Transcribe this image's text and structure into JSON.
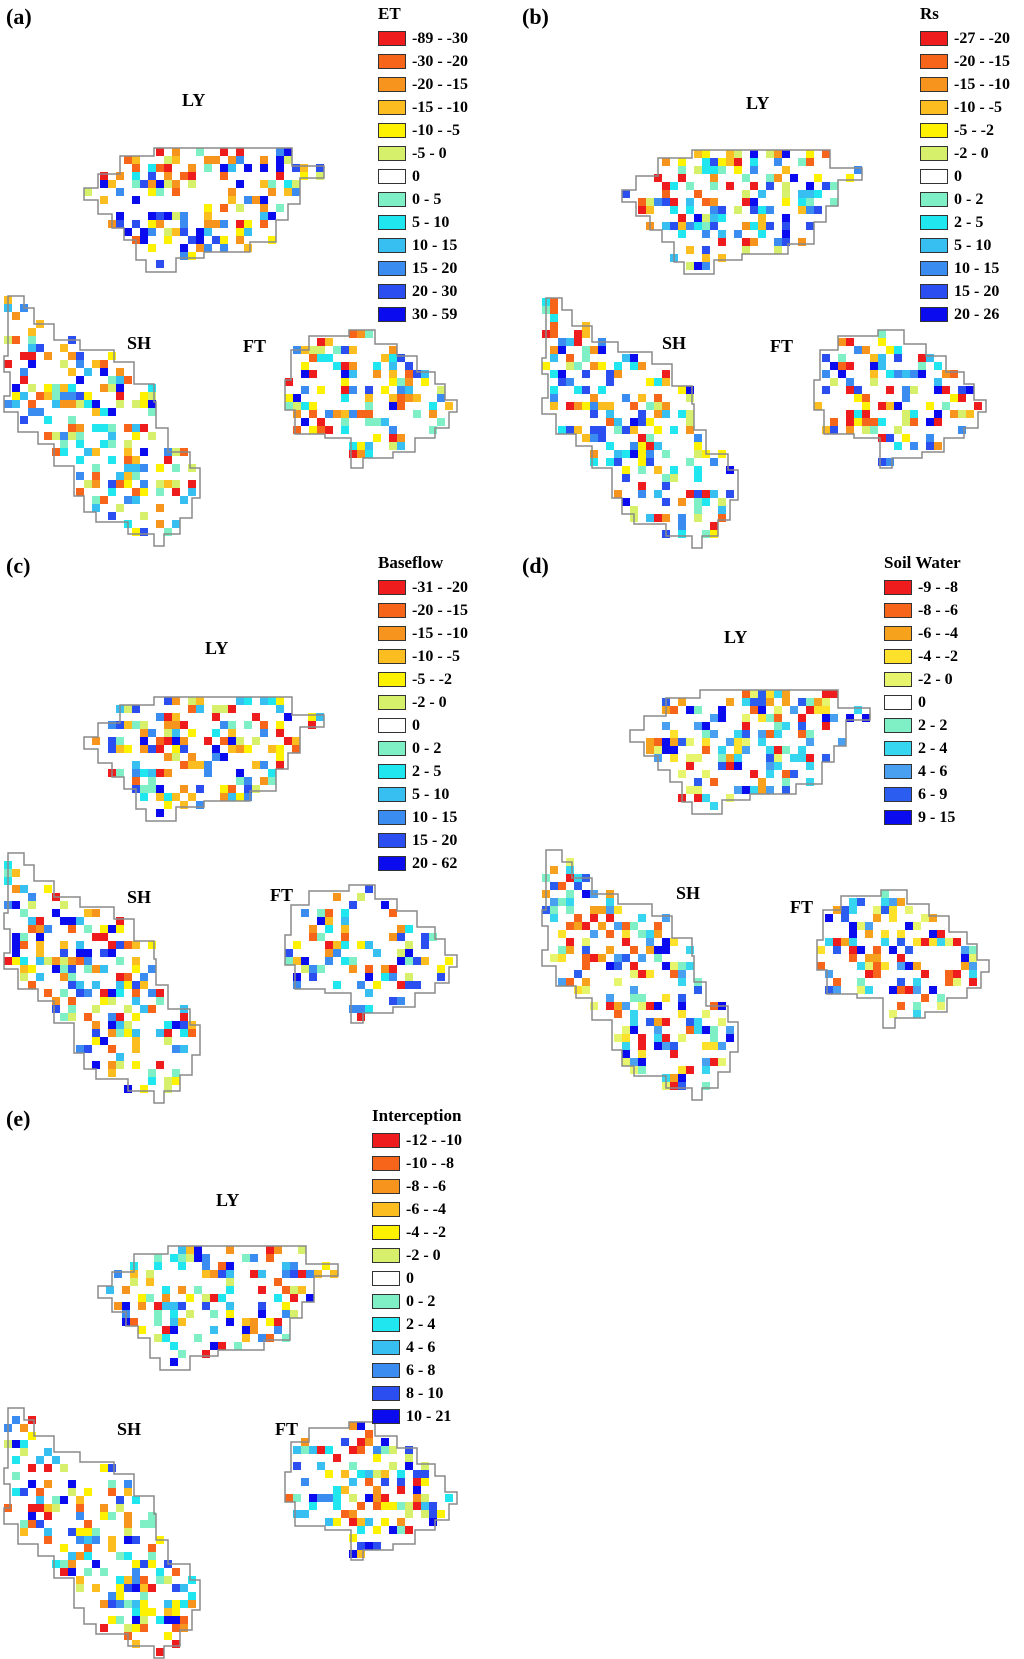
{
  "panels": [
    {
      "label": "(a)",
      "legend_title": "ET",
      "classes": [
        {
          "range": "-89 - -30",
          "color": "#ee1c1c"
        },
        {
          "range": "-30 - -20",
          "color": "#f7651a"
        },
        {
          "range": "-20 - -15",
          "color": "#f7941d"
        },
        {
          "range": "-15 - -10",
          "color": "#fbbd20"
        },
        {
          "range": "-10 - -5",
          "color": "#fff200"
        },
        {
          "range": "-5 - 0",
          "color": "#d7f06b"
        },
        {
          "range": "0",
          "color": "#ffffff"
        },
        {
          "range": "0 - 5",
          "color": "#7ff0c6"
        },
        {
          "range": "5 - 10",
          "color": "#20e6f0"
        },
        {
          "range": "10 - 15",
          "color": "#36bff0"
        },
        {
          "range": "15 - 20",
          "color": "#3b8cf0"
        },
        {
          "range": "20 - 30",
          "color": "#2b4ef0"
        },
        {
          "range": "30 - 59",
          "color": "#0b0bf0"
        }
      ]
    },
    {
      "label": "(b)",
      "legend_title": "Rs",
      "classes": [
        {
          "range": "-27 - -20",
          "color": "#ee1c1c"
        },
        {
          "range": "-20 - -15",
          "color": "#f7651a"
        },
        {
          "range": "-15 - -10",
          "color": "#f7941d"
        },
        {
          "range": "-10 - -5",
          "color": "#fbbd20"
        },
        {
          "range": "-5 - -2",
          "color": "#fff200"
        },
        {
          "range": "-2 - 0",
          "color": "#d7f06b"
        },
        {
          "range": "0",
          "color": "#ffffff"
        },
        {
          "range": "0 - 2",
          "color": "#7ff0c6"
        },
        {
          "range": "2 - 5",
          "color": "#20e6f0"
        },
        {
          "range": "5 - 10",
          "color": "#36bff0"
        },
        {
          "range": "10 - 15",
          "color": "#3b8cf0"
        },
        {
          "range": "15 - 20",
          "color": "#2b4ef0"
        },
        {
          "range": "20 - 26",
          "color": "#0b0bf0"
        }
      ]
    },
    {
      "label": "(c)",
      "legend_title": "Baseflow",
      "classes": [
        {
          "range": "-31 - -20",
          "color": "#ee1c1c"
        },
        {
          "range": "-20 - -15",
          "color": "#f7651a"
        },
        {
          "range": "-15 - -10",
          "color": "#f7941d"
        },
        {
          "range": "-10 - -5",
          "color": "#fbbd20"
        },
        {
          "range": "-5 - -2",
          "color": "#fff200"
        },
        {
          "range": "-2 - 0",
          "color": "#d7f06b"
        },
        {
          "range": "0",
          "color": "#ffffff"
        },
        {
          "range": "0 - 2",
          "color": "#7ff0c6"
        },
        {
          "range": "2 - 5",
          "color": "#20e6f0"
        },
        {
          "range": "5 - 10",
          "color": "#36bff0"
        },
        {
          "range": "10 - 15",
          "color": "#3b8cf0"
        },
        {
          "range": "15 - 20",
          "color": "#2b4ef0"
        },
        {
          "range": "20 - 62",
          "color": "#0b0bf0"
        }
      ]
    },
    {
      "label": "(d)",
      "legend_title": "Soil Water",
      "classes": [
        {
          "range": "-9 - -8",
          "color": "#ee1c1c"
        },
        {
          "range": "-8 - -6",
          "color": "#f7651a"
        },
        {
          "range": "-6 - -4",
          "color": "#f7a21d"
        },
        {
          "range": "-4 - -2",
          "color": "#fde12b"
        },
        {
          "range": "-2 - 0",
          "color": "#e6f56b"
        },
        {
          "range": "0",
          "color": "#ffffff"
        },
        {
          "range": "2 - 2",
          "color": "#7ff0c6"
        },
        {
          "range": "2 - 4",
          "color": "#36d6f0"
        },
        {
          "range": "4 - 6",
          "color": "#4aa0f0"
        },
        {
          "range": "6 - 9",
          "color": "#2b5ef0"
        },
        {
          "range": "9 - 15",
          "color": "#0b0bf0"
        }
      ]
    },
    {
      "label": "(e)",
      "legend_title": "Interception",
      "classes": [
        {
          "range": "-12 - -10",
          "color": "#ee1c1c"
        },
        {
          "range": "-10 - -8",
          "color": "#f7651a"
        },
        {
          "range": "-8 - -6",
          "color": "#f7941d"
        },
        {
          "range": "-6 - -4",
          "color": "#fbbd20"
        },
        {
          "range": "-4 - -2",
          "color": "#fff200"
        },
        {
          "range": "-2 - 0",
          "color": "#d7f06b"
        },
        {
          "range": "0",
          "color": "#ffffff"
        },
        {
          "range": "0 - 2",
          "color": "#7ff0c6"
        },
        {
          "range": "2 - 4",
          "color": "#20e6f0"
        },
        {
          "range": "4 - 6",
          "color": "#36bff0"
        },
        {
          "range": "6 - 8",
          "color": "#3b8cf0"
        },
        {
          "range": "8 - 10",
          "color": "#2b4ef0"
        },
        {
          "range": "10 - 21",
          "color": "#0b0bf0"
        }
      ]
    }
  ],
  "regions": {
    "ly": "LY",
    "sh": "SH",
    "ft": "FT"
  },
  "outline_color": "#8a8a8a"
}
